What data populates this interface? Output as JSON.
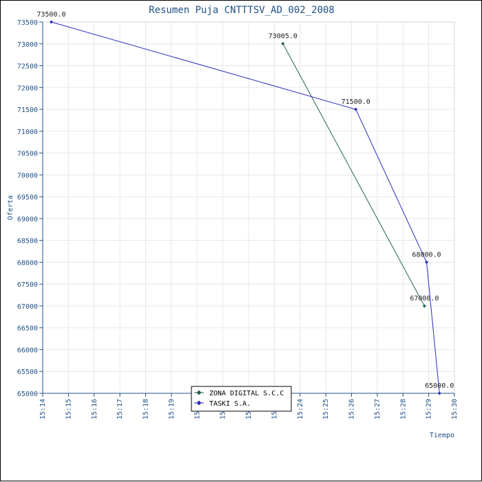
{
  "chart_data": {
    "type": "line",
    "title": "Resumen Puja CNTTTSV_AD_002_2008",
    "xlabel": "Tiempo",
    "ylabel": "Oferta",
    "x_ticks": [
      "15:14",
      "15:15",
      "15:16",
      "15:17",
      "15:18",
      "15:19",
      "15:20",
      "15:21",
      "15:22",
      "15:23",
      "15:24",
      "15:25",
      "15:26",
      "15:27",
      "15:28",
      "15:29",
      "15:30"
    ],
    "xlim": [
      "15:14",
      "15:30"
    ],
    "ylim": [
      65000,
      73500
    ],
    "y_tick_step": 500,
    "grid": true,
    "legend_position": "bottom-center",
    "series": [
      {
        "name": "ZONA DIGITAL S.C.C",
        "color": "#1f5f4f",
        "marker": "diamond",
        "points": [
          {
            "x": "15:23:20",
            "y": 73005,
            "label": "73005.0"
          },
          {
            "x": "15:28:50",
            "y": 67000,
            "label": "67000.0"
          }
        ]
      },
      {
        "name": "TASKI S.A.",
        "color": "#2a2ac0",
        "marker": "diamond",
        "points": [
          {
            "x": "15:14:20",
            "y": 73500,
            "label": "73500.0"
          },
          {
            "x": "15:26:10",
            "y": 71500,
            "label": "71500.0"
          },
          {
            "x": "15:28:55",
            "y": 68000,
            "label": "68000.0"
          },
          {
            "x": "15:29:25",
            "y": 65000,
            "label": "65000.0"
          }
        ]
      }
    ]
  }
}
